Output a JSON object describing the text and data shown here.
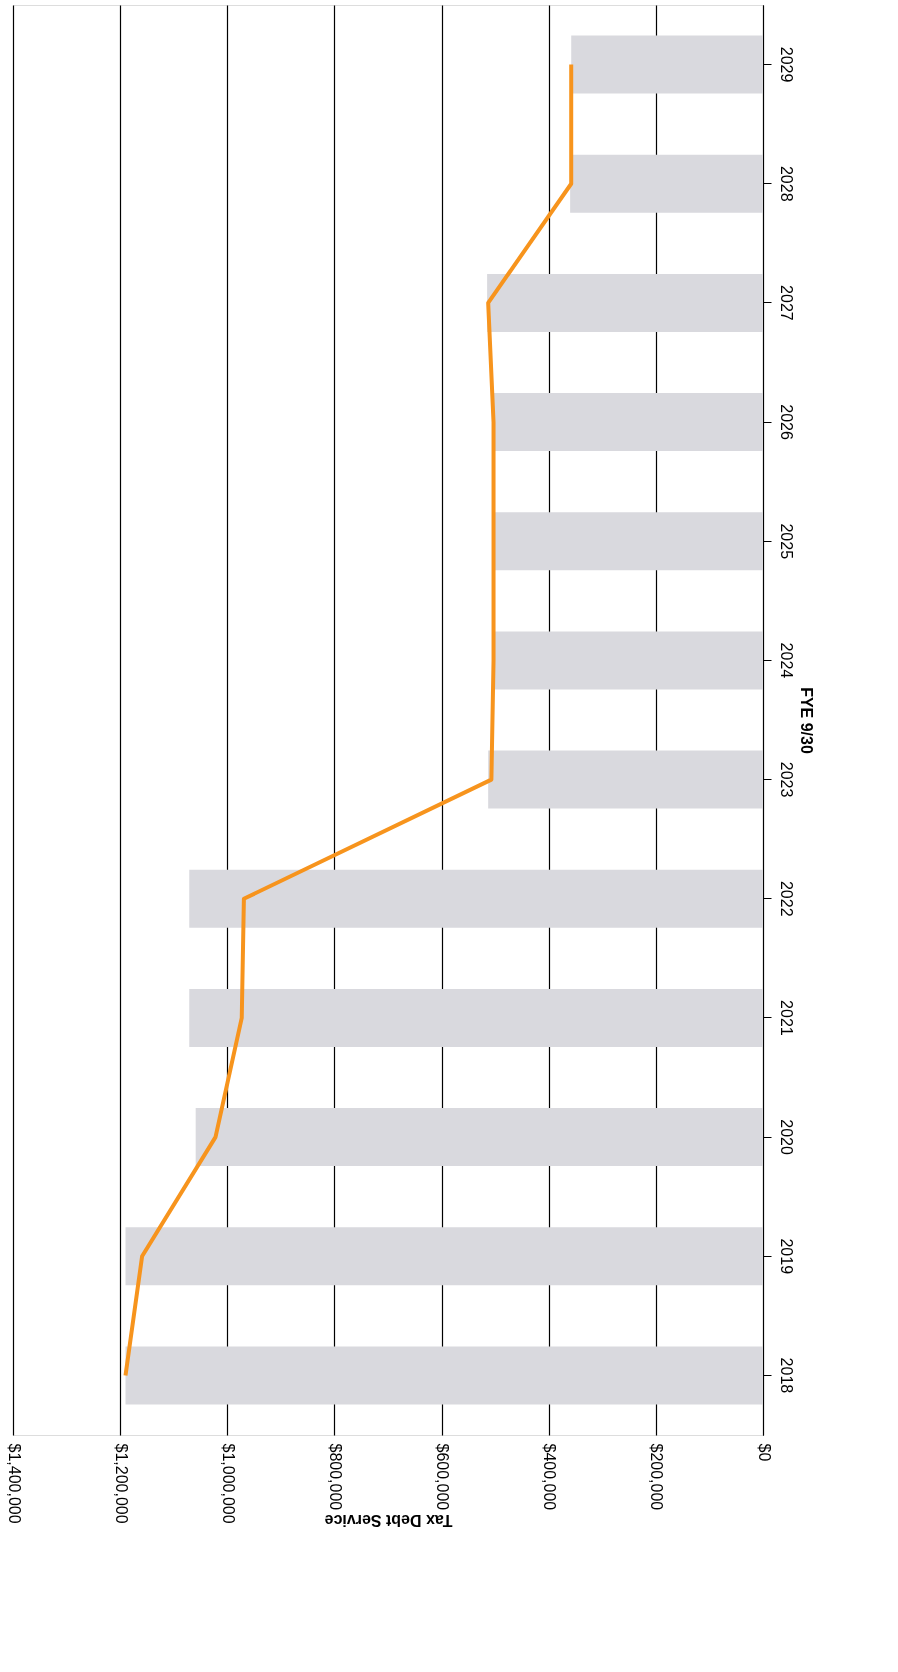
{
  "chart_data": {
    "type": "bar",
    "orientation": "horizontal",
    "xlabel": "Tax Debt Service",
    "ylabel": "FYE 9/30",
    "categories": [
      "2029",
      "2028",
      "2027",
      "2026",
      "2025",
      "2024",
      "2023",
      "2022",
      "2021",
      "2020",
      "2019",
      "2018"
    ],
    "series": [
      {
        "color": "#d9d9de",
        "values": [
          358000,
          360000,
          515000,
          505000,
          505000,
          505000,
          513000,
          1071000,
          1071000,
          1059000,
          1190000,
          1190000
        ]
      },
      {
        "type": "line",
        "color": "#f7941d",
        "values": [
          358000,
          358000,
          513000,
          503000,
          503000,
          503000,
          507000,
          969000,
          973000,
          1022000,
          1159000,
          1190000
        ]
      }
    ],
    "xlim": [
      1400000,
      0
    ],
    "xticks": [
      {
        "value": 0,
        "label": "$0"
      },
      {
        "value": 200000,
        "label": "$200,000"
      },
      {
        "value": 400000,
        "label": "$400,000"
      },
      {
        "value": 600000,
        "label": "$600,000"
      },
      {
        "value": 800000,
        "label": "$800,000"
      },
      {
        "value": 1000000,
        "label": "$1,000,000"
      },
      {
        "value": 1200000,
        "label": "$1,200,000"
      },
      {
        "value": 1400000,
        "label": "$1,400,000"
      }
    ],
    "grid": "x",
    "marker": "none",
    "line_style": "solid"
  }
}
